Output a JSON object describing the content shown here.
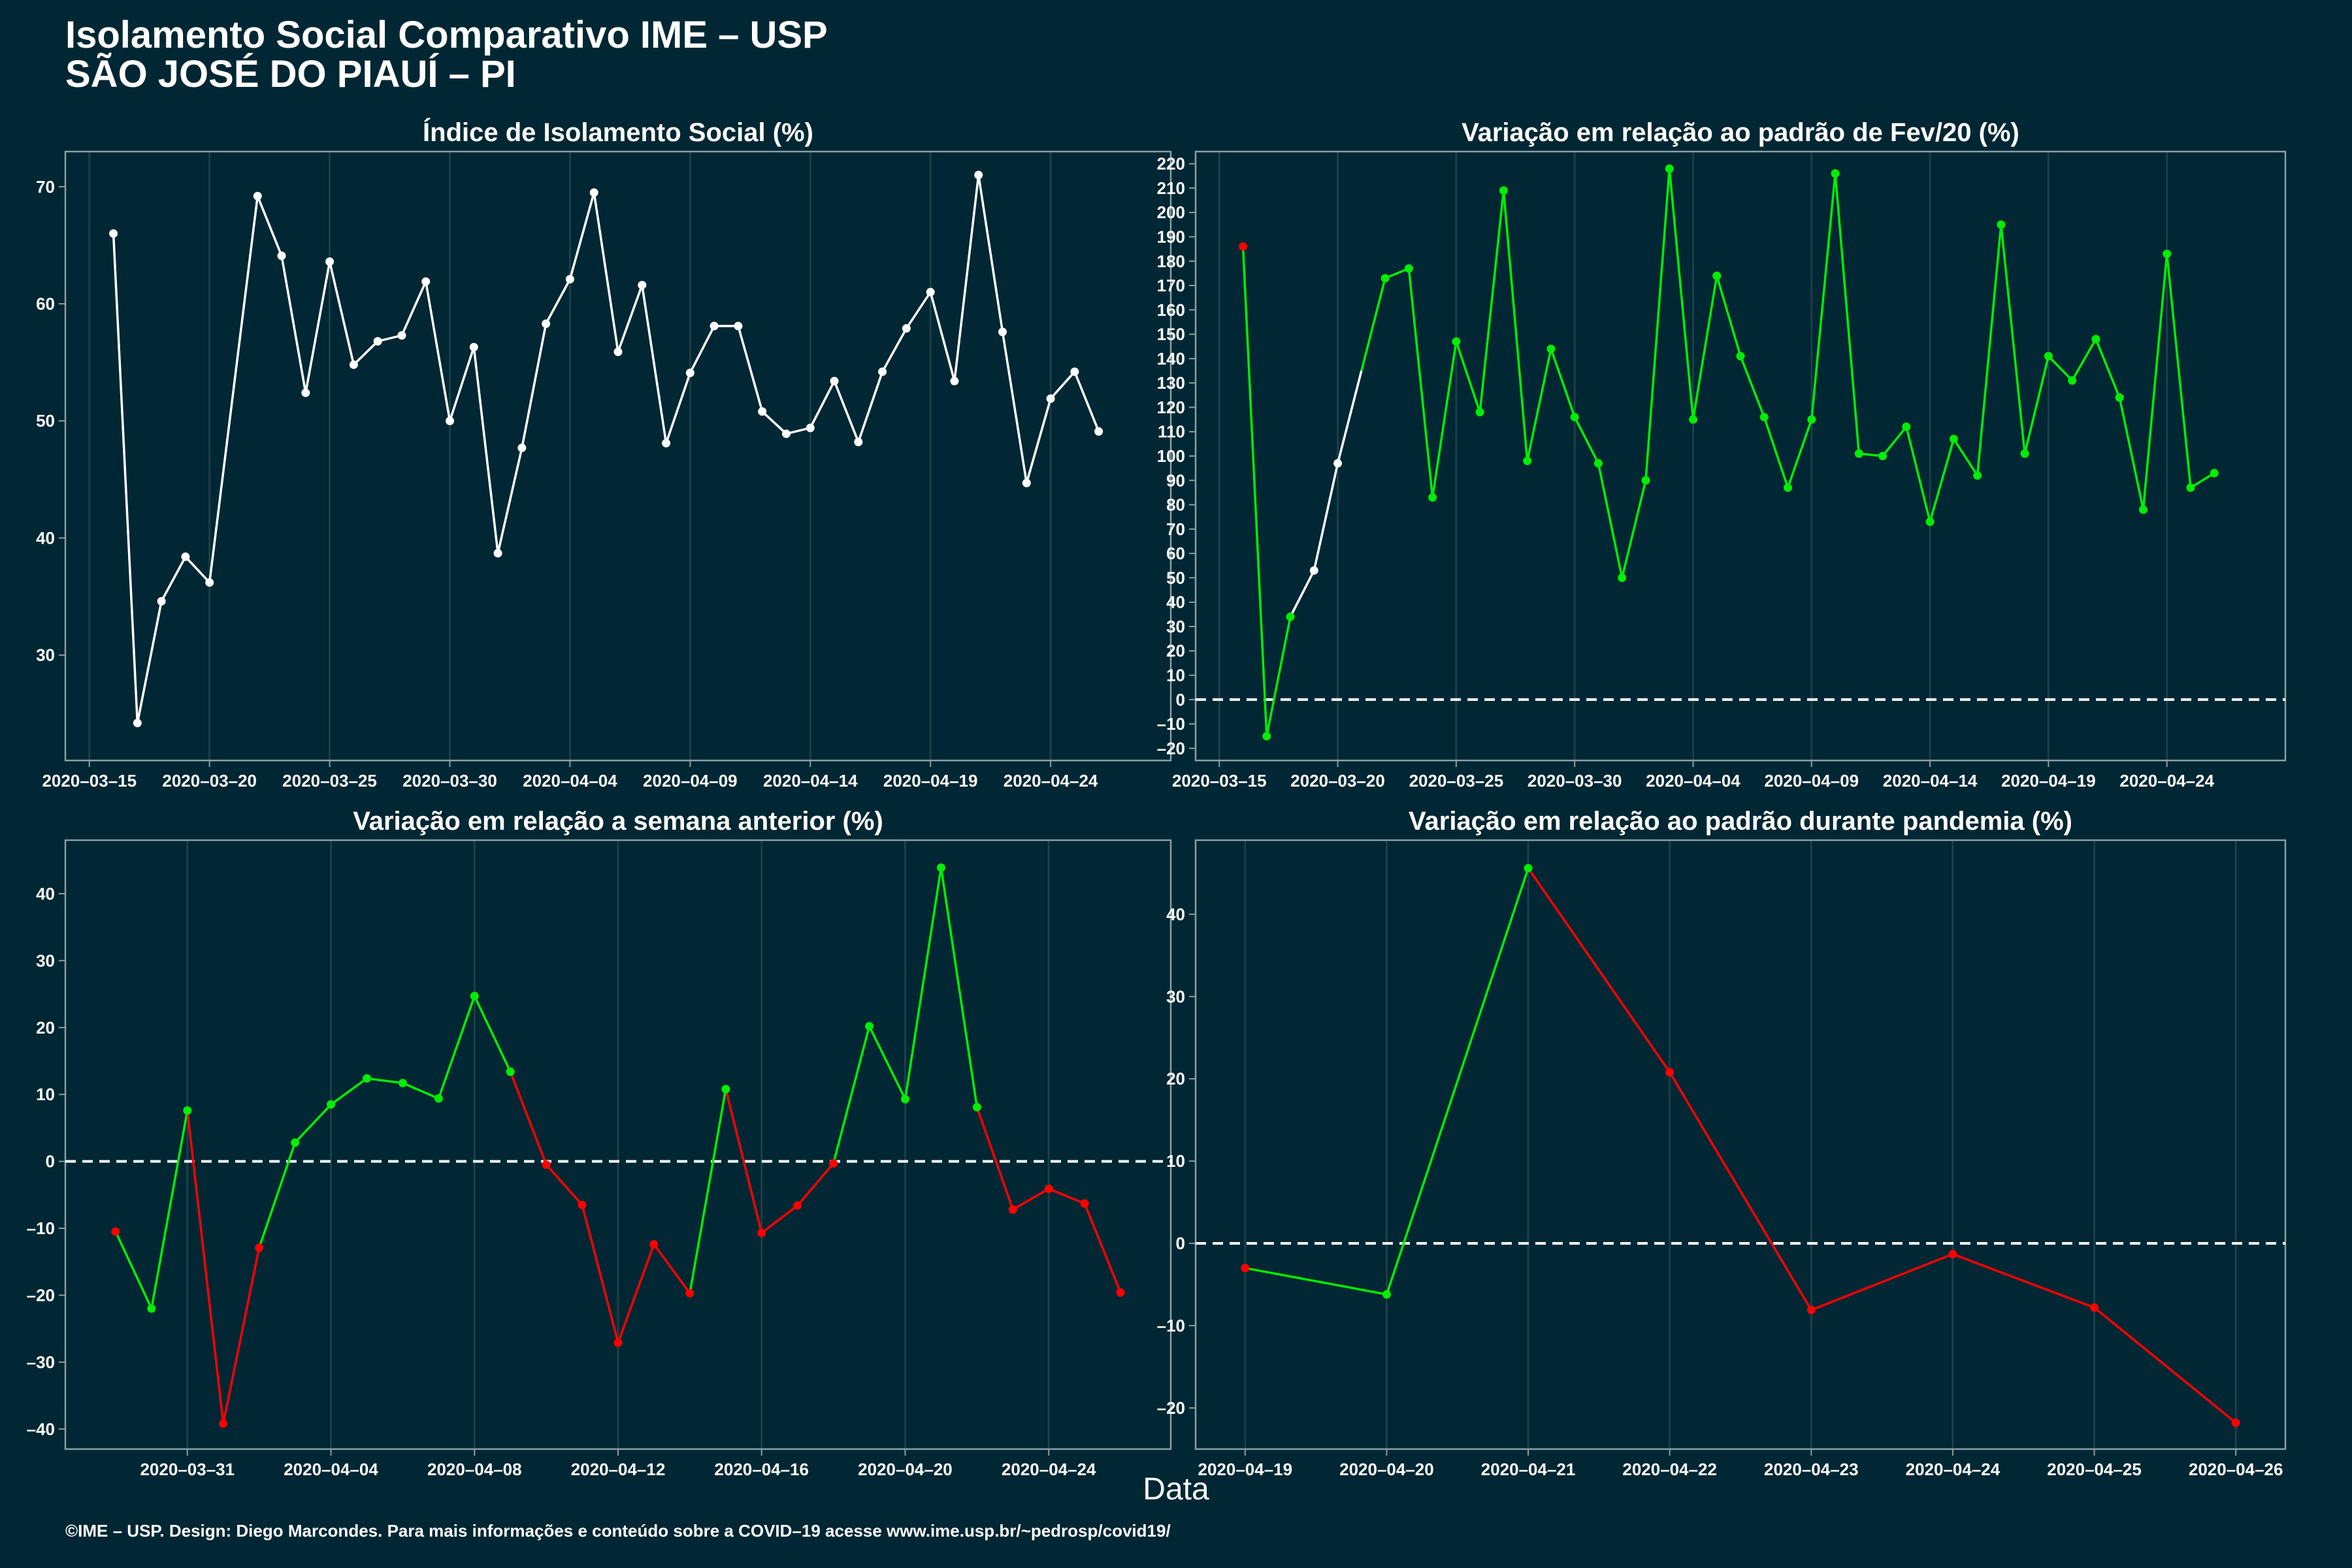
{
  "header": {
    "title": "Isolamento Social Comparativo IME – USP",
    "subtitle": "SÃO JOSÉ DO PIAUÍ – PI"
  },
  "footer": "©IME – USP. Design: Diego Marcondes. Para mais informações e conteúdo sobre a COVID–19 acesse www.ime.usp.br/~pedrosp/covid19/",
  "xlabel": "Data",
  "colors": {
    "background": "#002733",
    "white": "#ffffff",
    "green": "#00ee00",
    "red": "#ff0000",
    "axis": "#8aa0a6",
    "grid": "#1c3f49"
  },
  "chart_data": [
    {
      "type": "line",
      "title": "Índice de Isolamento Social (%)",
      "x_start": "2020-03-16",
      "x_tick_labels": [
        "2020–03–15",
        "2020–03–20",
        "2020–03–25",
        "2020–03–30",
        "2020–04–04",
        "2020–04–09",
        "2020–04–14",
        "2020–04–19",
        "2020–04–24"
      ],
      "x_tick_dates": [
        "2020-03-15",
        "2020-03-20",
        "2020-03-25",
        "2020-03-30",
        "2020-04-04",
        "2020-04-09",
        "2020-04-14",
        "2020-04-19",
        "2020-04-24"
      ],
      "xlim": [
        "2020-03-14",
        "2020-04-29"
      ],
      "ylim": [
        21,
        73
      ],
      "y_ticks": [
        30,
        40,
        50,
        60,
        70
      ],
      "values": [
        66.0,
        24.2,
        34.6,
        38.4,
        36.2,
        52.7,
        69.2,
        64.1,
        52.4,
        63.6,
        54.8,
        56.8,
        57.3,
        61.9,
        50.0,
        56.3,
        38.7,
        47.7,
        58.3,
        62.1,
        69.5,
        55.9,
        61.6,
        48.1,
        54.1,
        58.1,
        58.1,
        50.8,
        48.9,
        49.4,
        53.4,
        48.2,
        54.2,
        57.9,
        61.0,
        53.4,
        71.0,
        57.6,
        44.7,
        51.9,
        54.2,
        49.1
      ],
      "colors": [
        "white",
        "white",
        "white",
        "white",
        "white",
        "white",
        "white",
        "white",
        "white",
        "white",
        "white",
        "white",
        "white",
        "white",
        "white",
        "white",
        "white",
        "white",
        "white",
        "white",
        "white",
        "white",
        "white",
        "white",
        "white",
        "white",
        "white",
        "white",
        "white",
        "white",
        "white",
        "white",
        "white",
        "white",
        "white",
        "white",
        "white",
        "white",
        "white",
        "white",
        "white",
        "white"
      ],
      "point_visible": [
        true,
        true,
        true,
        true,
        true,
        false,
        true,
        true,
        true,
        true,
        true,
        true,
        true,
        true,
        true,
        true,
        true,
        true,
        true,
        true,
        true,
        true,
        true,
        true,
        true,
        true,
        true,
        true,
        true,
        true,
        true,
        true,
        true,
        true,
        true,
        true,
        true,
        true,
        true,
        true,
        true,
        true
      ],
      "zero_line": false
    },
    {
      "type": "line",
      "title": "Variação em relação ao padrão de Fev/20 (%)",
      "x_start": "2020-03-16",
      "x_tick_labels": [
        "2020–03–15",
        "2020–03–20",
        "2020–03–25",
        "2020–03–30",
        "2020–04–04",
        "2020–04–09",
        "2020–04–14",
        "2020–04–19",
        "2020–04–24"
      ],
      "x_tick_dates": [
        "2020-03-15",
        "2020-03-20",
        "2020-03-25",
        "2020-03-30",
        "2020-04-04",
        "2020-04-09",
        "2020-04-14",
        "2020-04-19",
        "2020-04-24"
      ],
      "xlim": [
        "2020-03-14",
        "2020-04-29"
      ],
      "ylim": [
        -25,
        225
      ],
      "y_ticks": [
        -20,
        -10,
        0,
        10,
        20,
        30,
        40,
        50,
        60,
        70,
        80,
        90,
        100,
        110,
        120,
        130,
        140,
        150,
        160,
        170,
        180,
        190,
        200,
        210,
        220
      ],
      "values": [
        186,
        -15,
        34,
        53,
        97,
        135,
        173,
        177,
        83,
        147,
        118,
        209,
        98,
        144,
        116,
        97,
        50,
        90,
        218,
        115,
        174,
        141,
        116,
        87,
        115,
        216,
        101,
        100,
        112,
        73,
        107,
        92,
        195,
        101,
        141,
        131,
        148,
        124,
        78,
        183,
        87,
        93
      ],
      "colors": [
        "red",
        "green",
        "green",
        "white",
        "white",
        "white",
        "green",
        "green",
        "green",
        "green",
        "green",
        "green",
        "green",
        "green",
        "green",
        "green",
        "green",
        "green",
        "green",
        "green",
        "green",
        "green",
        "green",
        "green",
        "green",
        "green",
        "green",
        "green",
        "green",
        "green",
        "green",
        "green",
        "green",
        "green",
        "green",
        "green",
        "green",
        "green",
        "green",
        "green",
        "green",
        "green"
      ],
      "point_visible": [
        true,
        true,
        true,
        true,
        true,
        false,
        true,
        true,
        true,
        true,
        true,
        true,
        true,
        true,
        true,
        true,
        true,
        true,
        true,
        true,
        true,
        true,
        true,
        true,
        true,
        true,
        true,
        true,
        true,
        true,
        true,
        true,
        true,
        true,
        true,
        true,
        true,
        true,
        true,
        true,
        true,
        true
      ],
      "zero_line": true
    },
    {
      "type": "line",
      "title": "Variação em relação a semana anterior (%)",
      "x_start": "2020-03-29",
      "x_tick_labels": [
        "2020–03–31",
        "2020–04–04",
        "2020–04–08",
        "2020–04–12",
        "2020–04–16",
        "2020–04–20",
        "2020–04–24"
      ],
      "x_tick_dates": [
        "2020-03-31",
        "2020-04-04",
        "2020-04-08",
        "2020-04-12",
        "2020-04-16",
        "2020-04-20",
        "2020-04-24"
      ],
      "xlim": [
        "2020-03-27.6",
        "2020-04-27.4"
      ],
      "ylim": [
        -43,
        48
      ],
      "y_ticks": [
        -40,
        -30,
        -20,
        -10,
        0,
        10,
        20,
        30,
        40
      ],
      "values": [
        -10.5,
        -22.0,
        7.6,
        -39.2,
        -12.9,
        2.8,
        8.5,
        12.4,
        11.7,
        9.4,
        24.7,
        13.4,
        -0.5,
        -6.5,
        -27.1,
        -12.4,
        -19.7,
        10.8,
        -10.7,
        -6.6,
        -0.3,
        20.2,
        9.3,
        43.9,
        8.1,
        -7.2,
        -4.1,
        -6.3,
        -19.6
      ],
      "colors": [
        "red",
        "green",
        "green",
        "red",
        "red",
        "green",
        "green",
        "green",
        "green",
        "green",
        "green",
        "green",
        "red",
        "red",
        "red",
        "red",
        "red",
        "green",
        "red",
        "red",
        "red",
        "green",
        "green",
        "green",
        "green",
        "red",
        "red",
        "red",
        "red"
      ],
      "point_visible": [
        true,
        true,
        true,
        true,
        true,
        true,
        true,
        true,
        true,
        true,
        true,
        true,
        true,
        true,
        true,
        true,
        true,
        true,
        true,
        true,
        true,
        true,
        true,
        true,
        true,
        true,
        true,
        true,
        true
      ],
      "zero_line": true
    },
    {
      "type": "line",
      "title": "Variação em relação ao padrão durante pandemia (%)",
      "x_start": "2020-04-19",
      "x_tick_labels": [
        "2020–04–19",
        "2020–04–20",
        "2020–04–21",
        "2020–04–22",
        "2020–04–23",
        "2020–04–24",
        "2020–04–25",
        "2020–04–26"
      ],
      "x_tick_dates": [
        "2020-04-19",
        "2020-04-20",
        "2020-04-21",
        "2020-04-22",
        "2020-04-23",
        "2020-04-24",
        "2020-04-25",
        "2020-04-26"
      ],
      "xlim": [
        "2020-04-18.65",
        "2020-04-26.35"
      ],
      "ylim": [
        -25,
        49
      ],
      "y_ticks": [
        -20,
        -10,
        0,
        10,
        20,
        30,
        40
      ],
      "values": [
        -3.0,
        -6.2,
        45.6,
        20.8,
        -8.1,
        -1.3,
        -7.8,
        -21.8
      ],
      "colors": [
        "red",
        "green",
        "green",
        "red",
        "red",
        "red",
        "red",
        "red"
      ],
      "point_visible": [
        true,
        true,
        true,
        true,
        true,
        true,
        true,
        true
      ],
      "zero_line": true
    }
  ]
}
